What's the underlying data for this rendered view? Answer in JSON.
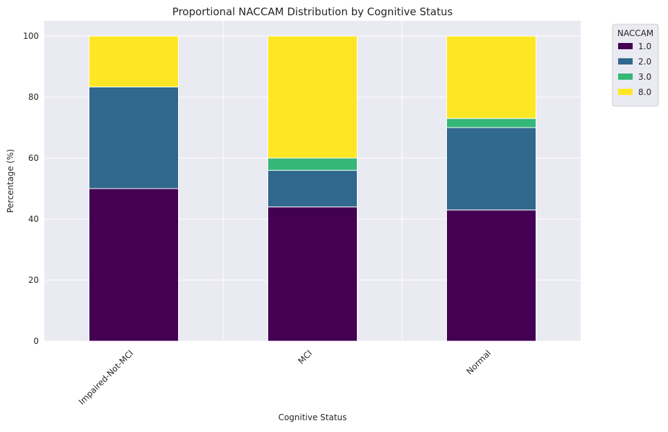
{
  "chart_data": {
    "type": "bar",
    "stacked": true,
    "title": "Proportional NACCAM Distribution by Cognitive Status",
    "xlabel": "Cognitive Status",
    "ylabel": "Percentage (%)",
    "ylim": [
      0,
      105
    ],
    "yticks": [
      0,
      20,
      40,
      60,
      80,
      100
    ],
    "grid": true,
    "categories": [
      "Impaired-Not-MCI",
      "MCI",
      "Normal"
    ],
    "legend": {
      "title": "NACCAM",
      "placement": "outside-top-right"
    },
    "series": [
      {
        "name": "1.0",
        "color": "#440154",
        "values": [
          50.0,
          44.0,
          43.0
        ]
      },
      {
        "name": "2.0",
        "color": "#31688e",
        "values": [
          33.3,
          12.0,
          27.0
        ]
      },
      {
        "name": "3.0",
        "color": "#35b779",
        "values": [
          0.0,
          4.0,
          3.0
        ]
      },
      {
        "name": "8.0",
        "color": "#fde725",
        "values": [
          16.7,
          40.0,
          27.0
        ]
      }
    ],
    "colors": {
      "plot_background": "#eaeaf2",
      "grid": "#ffffff",
      "text": "#262626"
    }
  }
}
